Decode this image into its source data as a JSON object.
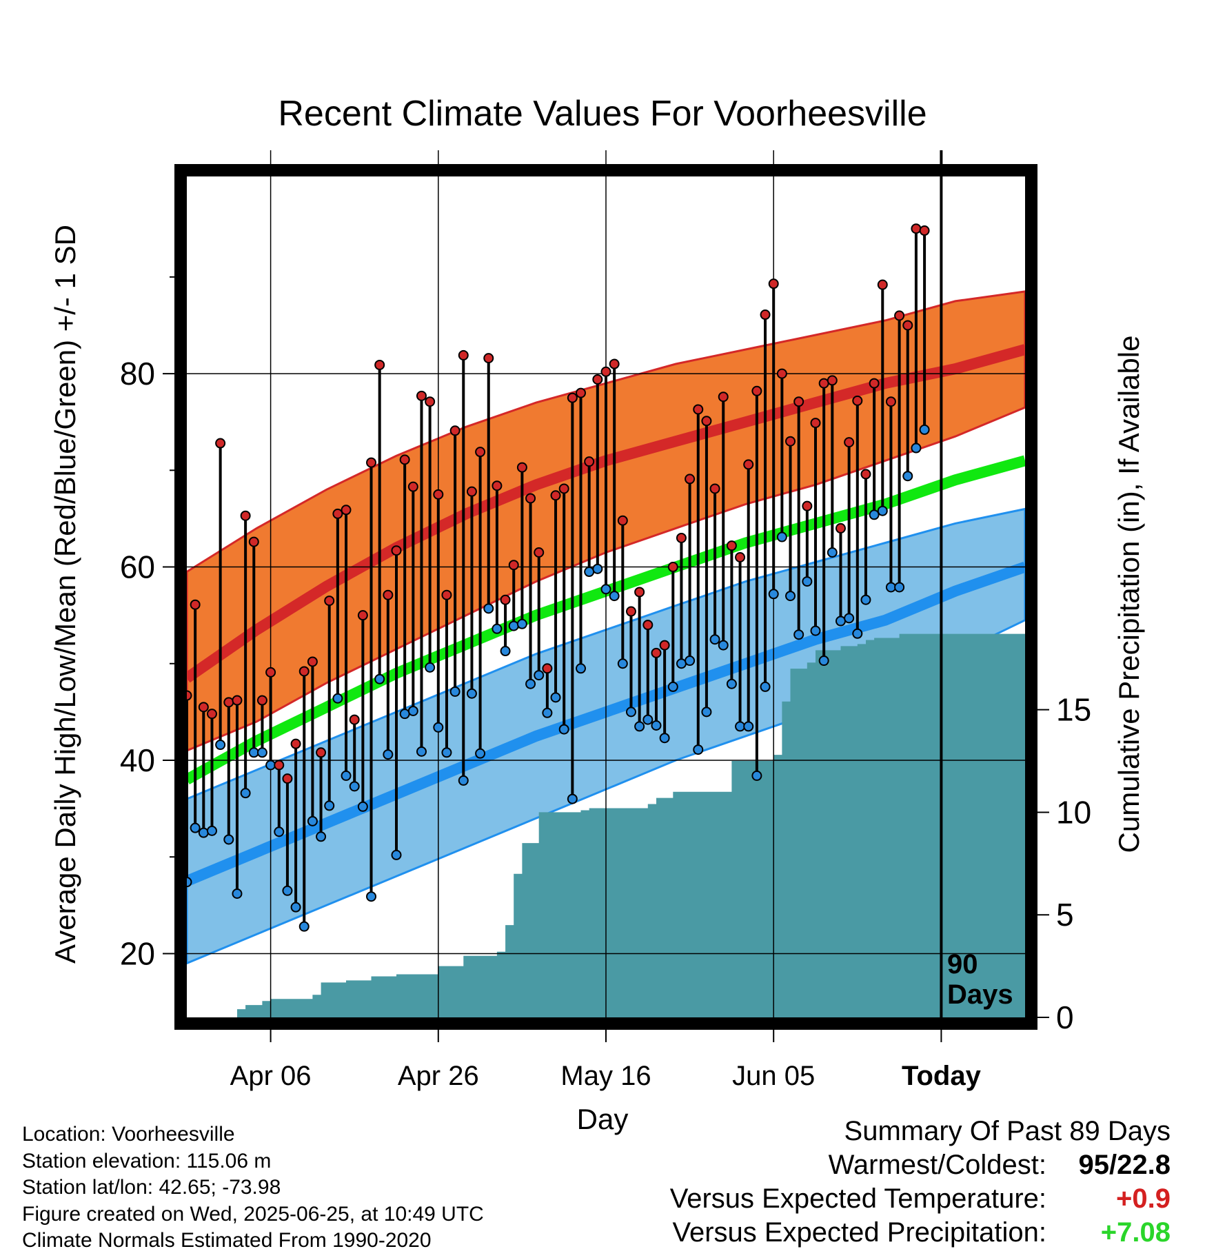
{
  "title": "Recent Climate Values For Voorheesville",
  "left_axis_label": "Average Daily High/Low/Mean (Red/Blue/Green) +/- 1 SD",
  "right_axis_label": "Cumulative Precipitation (in), If Available",
  "x_axis_label": "Day",
  "marker_label_line1": "90",
  "marker_label_line2": "Days",
  "info": {
    "location": "Location: Voorheesville",
    "elevation": "Station elevation: 115.06 m",
    "latlon": "Station lat/lon: 42.65; -73.98",
    "created": "Figure created on Wed, 2025-06-25, at 10:49 UTC",
    "normals": "Climate Normals Estimated From 1990-2020"
  },
  "summary": {
    "heading": "Summary Of Past 89 Days",
    "warmest_label": "Warmest/Coldest:",
    "warmest_value": "95/22.8",
    "temp_label": "Versus Expected Temperature:",
    "temp_value": "+0.9",
    "precip_label": "Versus Expected Precipitation:",
    "precip_value": "+7.08"
  },
  "colors": {
    "high_band": "#f07a30",
    "high_line": "#d42828",
    "low_band": "#80c0e8",
    "low_line": "#2090ee",
    "mean_line": "#10e810",
    "precip_fill": "#4a9aa4",
    "high_dot": "#d02828",
    "low_dot": "#2888dc"
  },
  "chart_data": {
    "type": "line",
    "x_range": [
      1,
      101
    ],
    "x_ticks": [
      {
        "day": 11,
        "label": "Apr 06"
      },
      {
        "day": 31,
        "label": "Apr 26"
      },
      {
        "day": 51,
        "label": "May 16"
      },
      {
        "day": 71,
        "label": "Jun 05"
      },
      {
        "day": 91,
        "label": "Today"
      }
    ],
    "today_day": 91,
    "y_left": {
      "range": [
        13.4,
        100.4
      ],
      "major_ticks": [
        20,
        40,
        60,
        80
      ],
      "minor_ticks": [
        30,
        50,
        70,
        90
      ]
    },
    "y_right": {
      "range": [
        0,
        41
      ],
      "ticks": [
        0,
        5,
        10,
        15
      ]
    },
    "normal_high": [
      48.5,
      53.5,
      58,
      62,
      65.5,
      68.5,
      71,
      73,
      75,
      77,
      79,
      80.5,
      82.5
    ],
    "normal_high_upper": [
      59.5,
      64,
      68,
      71.5,
      74.5,
      77,
      79,
      81,
      82.5,
      84,
      85.5,
      87.5,
      88.5
    ],
    "normal_high_lower": [
      41,
      44,
      48,
      51.5,
      55,
      58.5,
      61.5,
      64,
      66.5,
      68.5,
      71,
      73.5,
      76.5
    ],
    "normal_mean": [
      38,
      42,
      45.5,
      49,
      52,
      55,
      57.5,
      60,
      62.5,
      64.5,
      66.5,
      69,
      71
    ],
    "normal_low": [
      27.5,
      30.5,
      33.5,
      36.5,
      39.5,
      42.5,
      45,
      47.5,
      50,
      52.5,
      54.5,
      57.5,
      60
    ],
    "normal_low_upper": [
      36,
      39,
      42,
      45,
      48,
      51,
      53.5,
      56,
      58.5,
      60.5,
      62.5,
      64.5,
      66
    ],
    "normal_low_lower": [
      19,
      22,
      25,
      28,
      31,
      34,
      37,
      40,
      42.5,
      45,
      47.5,
      51,
      54.5
    ],
    "normal_days": [
      1,
      9.33,
      17.67,
      26,
      34.33,
      42.67,
      51,
      59.33,
      67.67,
      76,
      84.33,
      92.67,
      101
    ],
    "daily_high": [
      46.7,
      56.1,
      45.5,
      44.8,
      72.8,
      46,
      46.2,
      65.3,
      62.6,
      46.2,
      49.1,
      39.5,
      38.1,
      41.7,
      49.2,
      50.2,
      40.8,
      56.5,
      65.5,
      65.9,
      44.2,
      55,
      70.8,
      80.9,
      57.1,
      61.7,
      71.1,
      68.3,
      77.7,
      77.1,
      67.5,
      57.1,
      74.1,
      81.9,
      67.8,
      71.9,
      81.6,
      68.4,
      56.6,
      60.2,
      70.3,
      67.1,
      61.5,
      49.5,
      67.4,
      68.1,
      77.5,
      78,
      70.9,
      79.4,
      80.2,
      81,
      64.8,
      55.4,
      57.4,
      54,
      51.1,
      51.9,
      60,
      63,
      69.1,
      76.3,
      75.1,
      68.1,
      77.6,
      62.2,
      61,
      70.6,
      78.2,
      86.1,
      89.3,
      80,
      73,
      77.1,
      66.3,
      74.9,
      79,
      79.3,
      64,
      72.9,
      77.2,
      69.6,
      79,
      89.2,
      77.1,
      86,
      85,
      95,
      94.8
    ],
    "daily_low": [
      27.4,
      33,
      32.5,
      32.7,
      41.6,
      31.8,
      26.2,
      36.6,
      40.8,
      40.8,
      39.5,
      32.6,
      26.5,
      24.8,
      22.8,
      33.7,
      32.1,
      35.3,
      46.4,
      38.4,
      37.3,
      35.2,
      25.9,
      48.4,
      40.6,
      30.2,
      44.8,
      45.1,
      40.9,
      49.6,
      43.4,
      40.8,
      47.1,
      37.9,
      46.9,
      40.7,
      55.7,
      53.6,
      51.3,
      53.9,
      54.1,
      47.9,
      48.8,
      44.9,
      46.5,
      43.2,
      36,
      49.5,
      59.5,
      59.8,
      57.7,
      57,
      50,
      45,
      43.5,
      44.2,
      43.6,
      42.3,
      47.6,
      50,
      50.3,
      41.1,
      45,
      52.5,
      51.9,
      47.9,
      43.5,
      43.5,
      38.4,
      47.6,
      57.2,
      63.1,
      57,
      53,
      58.5,
      53.4,
      50.3,
      61.5,
      54.4,
      54.7,
      53.1,
      56.6,
      65.4,
      65.8,
      57.9,
      57.9,
      69.4,
      72.3,
      74.2
    ],
    "precip_days": [
      1,
      6,
      7,
      8,
      9,
      10,
      11,
      12,
      14,
      16,
      17,
      18,
      20,
      22,
      23,
      25,
      26,
      28,
      30,
      31,
      32,
      34,
      35,
      36,
      38,
      39,
      40,
      41,
      42,
      43,
      44,
      45,
      46,
      47,
      48,
      49,
      50,
      51,
      52,
      53,
      55,
      56,
      57,
      58,
      59,
      61,
      62,
      64,
      65,
      66,
      67,
      68,
      69,
      70,
      71,
      72,
      73,
      74,
      75,
      76,
      77,
      78,
      79,
      80,
      81,
      82,
      83,
      84,
      85,
      86,
      87,
      88,
      89,
      90,
      91,
      101
    ],
    "precip_cum": [
      0,
      0,
      0.4,
      0.6,
      0.6,
      0.8,
      0.9,
      0.9,
      0.9,
      1.1,
      1.7,
      1.7,
      1.8,
      1.8,
      2.0,
      2.0,
      2.1,
      2.1,
      2.1,
      2.5,
      2.5,
      3.0,
      3.0,
      3.0,
      3.2,
      4.5,
      7.0,
      8.5,
      8.5,
      10.0,
      10.0,
      10.0,
      10.0,
      10.0,
      10.1,
      10.2,
      10.2,
      10.2,
      10.2,
      10.2,
      10.2,
      10.4,
      10.7,
      10.7,
      11.0,
      11.0,
      11.0,
      11.0,
      11.0,
      12.5,
      12.5,
      12.5,
      12.5,
      12.5,
      12.8,
      15.4,
      17.0,
      17.0,
      17.3,
      17.9,
      17.9,
      17.9,
      18.1,
      18.1,
      18.2,
      18.4,
      18.5,
      18.5,
      18.5,
      18.7,
      18.7,
      18.7,
      18.7,
      18.7,
      18.7,
      18.7
    ]
  }
}
